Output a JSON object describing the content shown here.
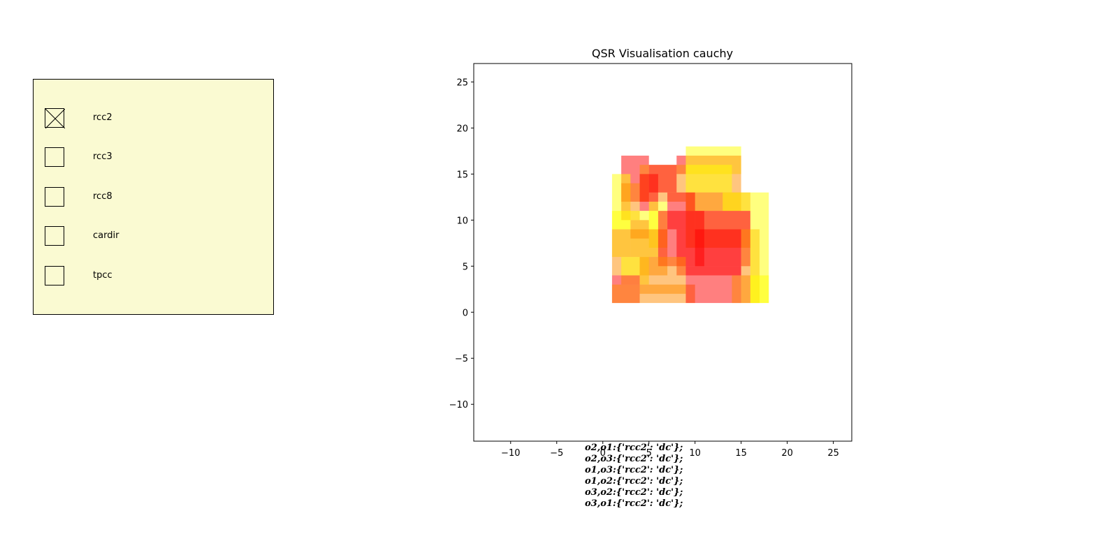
{
  "checkboxes": [
    {
      "label": "rcc2",
      "checked": true
    },
    {
      "label": "rcc3",
      "checked": false
    },
    {
      "label": "rcc8",
      "checked": false
    },
    {
      "label": "cardir",
      "checked": false
    },
    {
      "label": "tpcc",
      "checked": false
    }
  ],
  "colors": {
    "panel_bg": "#fafad2",
    "rect_red": "#ff0000",
    "rect_orange": "#ff8c00",
    "rect_yellow": "#ffff00"
  },
  "chart_data": {
    "type": "rectangles",
    "title": "QSR Visualisation cauchy",
    "xlim": [
      -14,
      27
    ],
    "ylim": [
      -14,
      27
    ],
    "xticks": [
      -10,
      -5,
      0,
      5,
      10,
      15,
      20,
      25
    ],
    "yticks": [
      -10,
      -5,
      0,
      5,
      10,
      15,
      20,
      25
    ],
    "xtick_labels": [
      "−10",
      "−5",
      "0",
      "5",
      "10",
      "15",
      "20",
      "25"
    ],
    "ytick_labels": [
      "−10",
      "−5",
      "0",
      "5",
      "10",
      "15",
      "20",
      "25"
    ],
    "rects": [
      {
        "color": "yellow",
        "x": [
          9,
          15
        ],
        "y": [
          15,
          18
        ]
      },
      {
        "color": "orange",
        "x": [
          9,
          15
        ],
        "y": [
          11,
          17
        ]
      },
      {
        "color": "yellow",
        "x": [
          9,
          14
        ],
        "y": [
          13,
          16
        ]
      },
      {
        "color": "red",
        "x": [
          2,
          5
        ],
        "y": [
          12,
          17
        ]
      },
      {
        "color": "red",
        "x": [
          8,
          9
        ],
        "y": [
          15,
          17
        ]
      },
      {
        "color": "orange",
        "x": [
          4,
          9
        ],
        "y": [
          12,
          16
        ]
      },
      {
        "color": "red",
        "x": [
          5,
          8
        ],
        "y": [
          13,
          16
        ]
      },
      {
        "color": "red",
        "x": [
          4,
          6
        ],
        "y": [
          11,
          15
        ]
      },
      {
        "color": "yellow",
        "x": [
          1,
          3
        ],
        "y": [
          9,
          15
        ]
      },
      {
        "color": "orange",
        "x": [
          2,
          4
        ],
        "y": [
          10,
          14
        ]
      },
      {
        "color": "orange",
        "x": [
          9,
          16
        ],
        "y": [
          7,
          13
        ]
      },
      {
        "color": "yellow",
        "x": [
          16,
          18
        ],
        "y": [
          9,
          13
        ]
      },
      {
        "color": "yellow",
        "x": [
          13,
          16
        ],
        "y": [
          11,
          13
        ]
      },
      {
        "color": "red",
        "x": [
          10,
          16
        ],
        "y": [
          9,
          11
        ]
      },
      {
        "color": "red",
        "x": [
          7,
          10
        ],
        "y": [
          9,
          13
        ]
      },
      {
        "color": "yellow",
        "x": [
          1,
          3
        ],
        "y": [
          6,
          11
        ]
      },
      {
        "color": "yellow",
        "x": [
          3,
          6
        ],
        "y": [
          6,
          11
        ]
      },
      {
        "color": "orange",
        "x": [
          3,
          5
        ],
        "y": [
          8,
          10
        ]
      },
      {
        "color": "yellow",
        "x": [
          5,
          7
        ],
        "y": [
          7,
          12
        ]
      },
      {
        "color": "orange",
        "x": [
          1,
          7
        ],
        "y": [
          4,
          9
        ]
      },
      {
        "color": "red",
        "x": [
          6,
          11
        ],
        "y": [
          5,
          11
        ]
      },
      {
        "color": "red",
        "x": [
          8,
          15
        ],
        "y": [
          4,
          9
        ]
      },
      {
        "color": "red",
        "x": [
          10,
          16
        ],
        "y": [
          5,
          9
        ]
      },
      {
        "color": "orange",
        "x": [
          15,
          17
        ],
        "y": [
          1,
          9
        ]
      },
      {
        "color": "yellow",
        "x": [
          16,
          18
        ],
        "y": [
          1,
          9
        ]
      },
      {
        "color": "yellow",
        "x": [
          16,
          18
        ],
        "y": [
          1,
          4
        ]
      },
      {
        "color": "yellow",
        "x": [
          2,
          5
        ],
        "y": [
          3,
          6
        ]
      },
      {
        "color": "orange",
        "x": [
          4,
          9
        ],
        "y": [
          2,
          6
        ]
      },
      {
        "color": "red",
        "x": [
          1,
          4
        ],
        "y": [
          1,
          4
        ]
      },
      {
        "color": "orange",
        "x": [
          1,
          10
        ],
        "y": [
          1,
          3
        ]
      },
      {
        "color": "red",
        "x": [
          9,
          15
        ],
        "y": [
          1,
          5
        ]
      },
      {
        "color": "orange",
        "x": [
          14,
          16
        ],
        "y": [
          1,
          4
        ]
      }
    ],
    "annotations": [
      "o2,o1:{'rcc2': 'dc'};",
      "o2,o3:{'rcc2': 'dc'};",
      "o1,o3:{'rcc2': 'dc'};",
      "o1,o2:{'rcc2': 'dc'};",
      "o3,o2:{'rcc2': 'dc'};",
      "o3,o1:{'rcc2': 'dc'};"
    ]
  }
}
